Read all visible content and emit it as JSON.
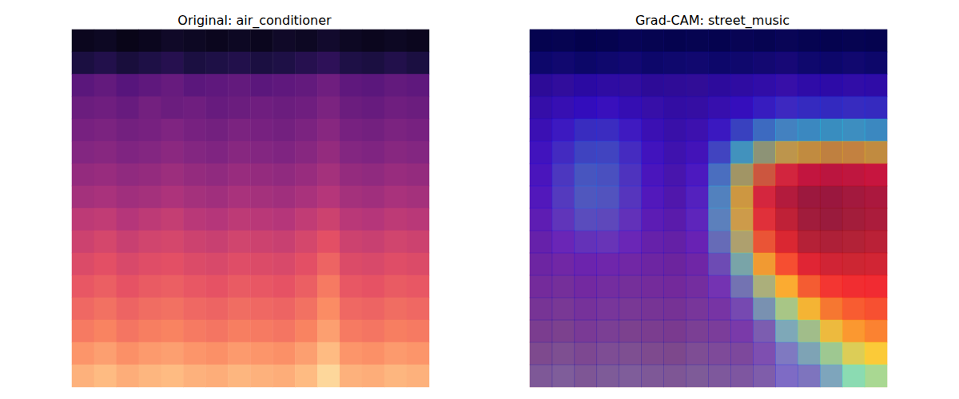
{
  "chart_data": [
    {
      "type": "heatmap",
      "title": "Original: air_conditioner",
      "color": "magma",
      "zlim": [
        0,
        1
      ],
      "tick_labels": false,
      "cells": [
        [
          0.05,
          0.06,
          0.04,
          0.05,
          0.07,
          0.06,
          0.05,
          0.06,
          0.05,
          0.07,
          0.06,
          0.08,
          0.06,
          0.05,
          0.06,
          0.05
        ],
        [
          0.12,
          0.14,
          0.11,
          0.13,
          0.15,
          0.12,
          0.13,
          0.14,
          0.12,
          0.13,
          0.15,
          0.17,
          0.13,
          0.12,
          0.14,
          0.12
        ],
        [
          0.28,
          0.3,
          0.27,
          0.29,
          0.31,
          0.28,
          0.29,
          0.3,
          0.28,
          0.29,
          0.3,
          0.33,
          0.29,
          0.28,
          0.3,
          0.29
        ],
        [
          0.32,
          0.33,
          0.31,
          0.34,
          0.32,
          0.33,
          0.31,
          0.32,
          0.33,
          0.32,
          0.33,
          0.36,
          0.32,
          0.31,
          0.33,
          0.32
        ],
        [
          0.35,
          0.36,
          0.34,
          0.35,
          0.37,
          0.35,
          0.34,
          0.36,
          0.35,
          0.34,
          0.36,
          0.39,
          0.35,
          0.34,
          0.36,
          0.35
        ],
        [
          0.38,
          0.39,
          0.37,
          0.38,
          0.4,
          0.38,
          0.37,
          0.39,
          0.38,
          0.37,
          0.39,
          0.42,
          0.38,
          0.37,
          0.39,
          0.38
        ],
        [
          0.42,
          0.43,
          0.41,
          0.42,
          0.44,
          0.42,
          0.41,
          0.43,
          0.42,
          0.41,
          0.43,
          0.46,
          0.42,
          0.41,
          0.43,
          0.42
        ],
        [
          0.46,
          0.47,
          0.45,
          0.46,
          0.48,
          0.46,
          0.45,
          0.47,
          0.46,
          0.45,
          0.47,
          0.5,
          0.46,
          0.45,
          0.47,
          0.46
        ],
        [
          0.52,
          0.53,
          0.5,
          0.52,
          0.54,
          0.51,
          0.5,
          0.52,
          0.51,
          0.5,
          0.53,
          0.56,
          0.51,
          0.5,
          0.52,
          0.51
        ],
        [
          0.56,
          0.58,
          0.55,
          0.57,
          0.58,
          0.56,
          0.55,
          0.57,
          0.56,
          0.55,
          0.58,
          0.62,
          0.56,
          0.55,
          0.57,
          0.56
        ],
        [
          0.6,
          0.62,
          0.59,
          0.61,
          0.62,
          0.6,
          0.59,
          0.61,
          0.6,
          0.59,
          0.62,
          0.67,
          0.6,
          0.59,
          0.61,
          0.6
        ],
        [
          0.64,
          0.66,
          0.63,
          0.65,
          0.66,
          0.64,
          0.63,
          0.65,
          0.64,
          0.63,
          0.66,
          0.72,
          0.64,
          0.63,
          0.65,
          0.64
        ],
        [
          0.68,
          0.7,
          0.67,
          0.69,
          0.7,
          0.68,
          0.67,
          0.69,
          0.68,
          0.67,
          0.7,
          0.76,
          0.68,
          0.67,
          0.69,
          0.68
        ],
        [
          0.72,
          0.74,
          0.71,
          0.73,
          0.74,
          0.72,
          0.71,
          0.73,
          0.72,
          0.71,
          0.74,
          0.8,
          0.72,
          0.71,
          0.73,
          0.72
        ],
        [
          0.78,
          0.8,
          0.77,
          0.79,
          0.8,
          0.78,
          0.77,
          0.79,
          0.78,
          0.77,
          0.8,
          0.86,
          0.78,
          0.77,
          0.79,
          0.78
        ],
        [
          0.84,
          0.86,
          0.83,
          0.85,
          0.86,
          0.84,
          0.83,
          0.85,
          0.84,
          0.83,
          0.86,
          0.92,
          0.84,
          0.83,
          0.85,
          0.84
        ]
      ]
    },
    {
      "type": "heatmap",
      "title": "Grad-CAM: street_music",
      "color": "magma",
      "zlim": [
        0,
        1
      ],
      "tick_labels": false,
      "cells": [
        [
          0.05,
          0.06,
          0.04,
          0.05,
          0.07,
          0.06,
          0.05,
          0.06,
          0.05,
          0.07,
          0.06,
          0.08,
          0.06,
          0.05,
          0.06,
          0.05
        ],
        [
          0.12,
          0.14,
          0.11,
          0.13,
          0.15,
          0.12,
          0.13,
          0.14,
          0.12,
          0.13,
          0.15,
          0.17,
          0.13,
          0.12,
          0.14,
          0.12
        ],
        [
          0.28,
          0.3,
          0.27,
          0.29,
          0.31,
          0.28,
          0.29,
          0.3,
          0.28,
          0.29,
          0.3,
          0.33,
          0.29,
          0.28,
          0.3,
          0.29
        ],
        [
          0.32,
          0.33,
          0.31,
          0.34,
          0.32,
          0.33,
          0.31,
          0.32,
          0.33,
          0.32,
          0.33,
          0.36,
          0.32,
          0.31,
          0.33,
          0.32
        ],
        [
          0.35,
          0.36,
          0.34,
          0.35,
          0.37,
          0.35,
          0.34,
          0.36,
          0.35,
          0.34,
          0.36,
          0.39,
          0.35,
          0.34,
          0.36,
          0.35
        ],
        [
          0.38,
          0.39,
          0.37,
          0.38,
          0.4,
          0.38,
          0.37,
          0.39,
          0.38,
          0.37,
          0.39,
          0.42,
          0.38,
          0.37,
          0.39,
          0.38
        ],
        [
          0.42,
          0.43,
          0.41,
          0.42,
          0.44,
          0.42,
          0.41,
          0.43,
          0.42,
          0.41,
          0.43,
          0.46,
          0.42,
          0.41,
          0.43,
          0.42
        ],
        [
          0.46,
          0.47,
          0.45,
          0.46,
          0.48,
          0.46,
          0.45,
          0.47,
          0.46,
          0.45,
          0.47,
          0.5,
          0.46,
          0.45,
          0.47,
          0.46
        ],
        [
          0.52,
          0.53,
          0.5,
          0.52,
          0.54,
          0.51,
          0.5,
          0.52,
          0.51,
          0.5,
          0.53,
          0.56,
          0.51,
          0.5,
          0.52,
          0.51
        ],
        [
          0.56,
          0.58,
          0.55,
          0.57,
          0.58,
          0.56,
          0.55,
          0.57,
          0.56,
          0.55,
          0.58,
          0.62,
          0.56,
          0.55,
          0.57,
          0.56
        ],
        [
          0.6,
          0.62,
          0.59,
          0.61,
          0.62,
          0.6,
          0.59,
          0.61,
          0.6,
          0.59,
          0.62,
          0.67,
          0.6,
          0.59,
          0.61,
          0.6
        ],
        [
          0.64,
          0.66,
          0.63,
          0.65,
          0.66,
          0.64,
          0.63,
          0.65,
          0.64,
          0.63,
          0.66,
          0.72,
          0.64,
          0.63,
          0.65,
          0.64
        ],
        [
          0.68,
          0.7,
          0.67,
          0.69,
          0.7,
          0.68,
          0.67,
          0.69,
          0.68,
          0.67,
          0.7,
          0.76,
          0.68,
          0.67,
          0.69,
          0.68
        ],
        [
          0.72,
          0.74,
          0.71,
          0.73,
          0.74,
          0.72,
          0.71,
          0.73,
          0.72,
          0.71,
          0.74,
          0.8,
          0.72,
          0.71,
          0.73,
          0.72
        ],
        [
          0.78,
          0.8,
          0.77,
          0.79,
          0.8,
          0.78,
          0.77,
          0.79,
          0.78,
          0.77,
          0.8,
          0.86,
          0.78,
          0.77,
          0.79,
          0.78
        ],
        [
          0.84,
          0.86,
          0.83,
          0.85,
          0.86,
          0.84,
          0.83,
          0.85,
          0.84,
          0.83,
          0.86,
          0.92,
          0.84,
          0.83,
          0.85,
          0.84
        ]
      ],
      "cam": {
        "color": "jet",
        "zlim": [
          0,
          1
        ],
        "cells": [
          [
            0.0,
            0.0,
            0.0,
            0.0,
            0.0,
            0.0,
            0.0,
            0.0,
            0.0,
            0.0,
            0.0,
            0.0,
            0.0,
            0.0,
            0.0,
            0.0
          ],
          [
            0.02,
            0.02,
            0.02,
            0.02,
            0.02,
            0.02,
            0.02,
            0.02,
            0.02,
            0.02,
            0.02,
            0.02,
            0.02,
            0.02,
            0.02,
            0.02
          ],
          [
            0.05,
            0.06,
            0.07,
            0.07,
            0.06,
            0.05,
            0.05,
            0.05,
            0.06,
            0.07,
            0.08,
            0.08,
            0.08,
            0.08,
            0.08,
            0.08
          ],
          [
            0.08,
            0.1,
            0.12,
            0.12,
            0.1,
            0.08,
            0.07,
            0.07,
            0.09,
            0.12,
            0.15,
            0.17,
            0.18,
            0.18,
            0.18,
            0.18
          ],
          [
            0.1,
            0.14,
            0.18,
            0.18,
            0.14,
            0.1,
            0.08,
            0.09,
            0.14,
            0.22,
            0.3,
            0.34,
            0.36,
            0.37,
            0.37,
            0.36
          ],
          [
            0.12,
            0.17,
            0.22,
            0.22,
            0.17,
            0.12,
            0.09,
            0.11,
            0.22,
            0.38,
            0.52,
            0.6,
            0.64,
            0.66,
            0.66,
            0.64
          ],
          [
            0.12,
            0.19,
            0.25,
            0.24,
            0.18,
            0.12,
            0.09,
            0.13,
            0.3,
            0.55,
            0.75,
            0.85,
            0.89,
            0.9,
            0.9,
            0.88
          ],
          [
            0.12,
            0.19,
            0.25,
            0.24,
            0.18,
            0.12,
            0.09,
            0.14,
            0.33,
            0.62,
            0.85,
            0.95,
            0.98,
            0.98,
            0.97,
            0.95
          ],
          [
            0.11,
            0.17,
            0.22,
            0.21,
            0.16,
            0.11,
            0.09,
            0.14,
            0.32,
            0.6,
            0.84,
            0.95,
            0.99,
            1.0,
            0.99,
            0.97
          ],
          [
            0.1,
            0.13,
            0.16,
            0.16,
            0.13,
            0.1,
            0.09,
            0.12,
            0.27,
            0.52,
            0.78,
            0.92,
            0.97,
            0.98,
            0.98,
            0.96
          ],
          [
            0.09,
            0.1,
            0.11,
            0.11,
            0.1,
            0.09,
            0.08,
            0.1,
            0.2,
            0.4,
            0.65,
            0.82,
            0.9,
            0.93,
            0.94,
            0.93
          ],
          [
            0.08,
            0.08,
            0.09,
            0.09,
            0.08,
            0.08,
            0.08,
            0.09,
            0.14,
            0.27,
            0.48,
            0.66,
            0.78,
            0.85,
            0.88,
            0.88
          ],
          [
            0.07,
            0.07,
            0.08,
            0.08,
            0.07,
            0.07,
            0.07,
            0.08,
            0.1,
            0.17,
            0.3,
            0.46,
            0.62,
            0.74,
            0.8,
            0.82
          ],
          [
            0.06,
            0.06,
            0.07,
            0.07,
            0.06,
            0.06,
            0.06,
            0.07,
            0.08,
            0.11,
            0.18,
            0.3,
            0.45,
            0.6,
            0.7,
            0.74
          ],
          [
            0.05,
            0.05,
            0.06,
            0.06,
            0.05,
            0.05,
            0.05,
            0.06,
            0.07,
            0.08,
            0.11,
            0.18,
            0.3,
            0.44,
            0.56,
            0.62
          ],
          [
            0.05,
            0.05,
            0.05,
            0.05,
            0.05,
            0.05,
            0.05,
            0.05,
            0.06,
            0.07,
            0.08,
            0.11,
            0.18,
            0.28,
            0.4,
            0.46
          ]
        ]
      }
    }
  ]
}
